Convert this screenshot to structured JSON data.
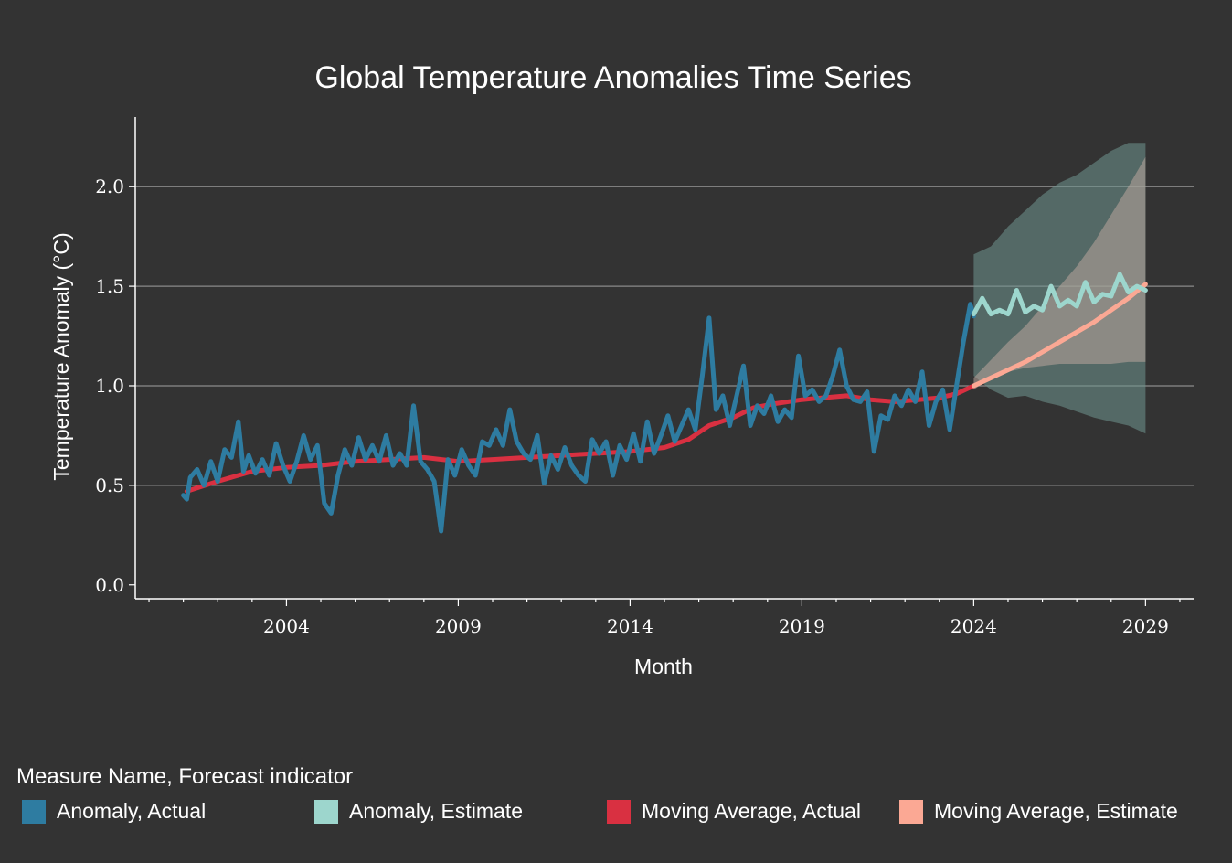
{
  "chart_data": {
    "type": "line",
    "title": "Global Temperature Anomalies Time Series",
    "xlabel": "Month",
    "ylabel": "Temperature Anomaly (°C)",
    "xlim": [
      1999.6,
      2030.4
    ],
    "ylim": [
      -0.07,
      2.35
    ],
    "x_ticks": [
      2004,
      2009,
      2014,
      2019,
      2024,
      2029
    ],
    "y_ticks": [
      0.0,
      0.5,
      1.0,
      1.5,
      2.0
    ],
    "y_tick_labels": [
      "0.0",
      "0.5",
      "1.0",
      "1.5",
      "2.0"
    ],
    "grid": true,
    "legend_title": "Measure Name, Forecast indicator",
    "series": [
      {
        "name": "Anomaly, Actual",
        "color": "#2e7ca1",
        "x": [
          2001.0,
          2001.1,
          2001.2,
          2001.4,
          2001.6,
          2001.8,
          2002.0,
          2002.2,
          2002.4,
          2002.6,
          2002.75,
          2002.9,
          2003.1,
          2003.3,
          2003.5,
          2003.7,
          2003.9,
          2004.1,
          2004.3,
          2004.5,
          2004.7,
          2004.9,
          2005.1,
          2005.3,
          2005.5,
          2005.7,
          2005.9,
          2006.1,
          2006.3,
          2006.5,
          2006.7,
          2006.9,
          2007.1,
          2007.3,
          2007.5,
          2007.7,
          2007.9,
          2008.1,
          2008.3,
          2008.5,
          2008.7,
          2008.9,
          2009.1,
          2009.3,
          2009.5,
          2009.7,
          2009.9,
          2010.1,
          2010.3,
          2010.5,
          2010.7,
          2010.9,
          2011.1,
          2011.3,
          2011.5,
          2011.7,
          2011.9,
          2012.1,
          2012.3,
          2012.5,
          2012.7,
          2012.9,
          2013.1,
          2013.3,
          2013.5,
          2013.7,
          2013.9,
          2014.1,
          2014.3,
          2014.5,
          2014.7,
          2014.9,
          2015.1,
          2015.3,
          2015.5,
          2015.7,
          2015.9,
          2016.1,
          2016.3,
          2016.5,
          2016.7,
          2016.9,
          2017.1,
          2017.3,
          2017.5,
          2017.7,
          2017.9,
          2018.1,
          2018.3,
          2018.5,
          2018.7,
          2018.9,
          2019.1,
          2019.3,
          2019.5,
          2019.7,
          2019.9,
          2020.1,
          2020.3,
          2020.5,
          2020.7,
          2020.9,
          2021.1,
          2021.3,
          2021.5,
          2021.7,
          2021.9,
          2022.1,
          2022.3,
          2022.5,
          2022.7,
          2022.9,
          2023.1,
          2023.3,
          2023.5,
          2023.7,
          2023.9,
          2024.0
        ],
        "values": [
          0.45,
          0.43,
          0.54,
          0.58,
          0.5,
          0.62,
          0.52,
          0.68,
          0.64,
          0.82,
          0.57,
          0.65,
          0.56,
          0.63,
          0.55,
          0.71,
          0.6,
          0.52,
          0.62,
          0.75,
          0.63,
          0.7,
          0.41,
          0.36,
          0.55,
          0.68,
          0.6,
          0.74,
          0.63,
          0.7,
          0.62,
          0.75,
          0.6,
          0.66,
          0.6,
          0.9,
          0.62,
          0.58,
          0.52,
          0.27,
          0.63,
          0.55,
          0.68,
          0.6,
          0.55,
          0.72,
          0.7,
          0.78,
          0.7,
          0.88,
          0.72,
          0.66,
          0.63,
          0.75,
          0.51,
          0.65,
          0.58,
          0.69,
          0.6,
          0.55,
          0.52,
          0.73,
          0.66,
          0.72,
          0.55,
          0.7,
          0.63,
          0.76,
          0.62,
          0.82,
          0.66,
          0.75,
          0.85,
          0.72,
          0.8,
          0.88,
          0.78,
          1.05,
          1.34,
          0.88,
          0.95,
          0.8,
          0.95,
          1.1,
          0.8,
          0.9,
          0.86,
          0.95,
          0.82,
          0.88,
          0.84,
          1.15,
          0.95,
          0.98,
          0.92,
          0.95,
          1.05,
          1.18,
          1.0,
          0.93,
          0.92,
          0.97,
          0.67,
          0.85,
          0.83,
          0.95,
          0.9,
          0.98,
          0.92,
          1.07,
          0.8,
          0.92,
          0.98,
          0.78,
          1.0,
          1.22,
          1.41,
          1.35
        ]
      },
      {
        "name": "Anomaly, Estimate",
        "color": "#9dd6cd",
        "x": [
          2024.0,
          2024.25,
          2024.5,
          2024.75,
          2025.0,
          2025.25,
          2025.5,
          2025.75,
          2026.0,
          2026.25,
          2026.5,
          2026.75,
          2027.0,
          2027.25,
          2027.5,
          2027.75,
          2028.0,
          2028.25,
          2028.5,
          2028.75,
          2029.0
        ],
        "values": [
          1.36,
          1.44,
          1.36,
          1.38,
          1.36,
          1.48,
          1.37,
          1.4,
          1.38,
          1.5,
          1.4,
          1.43,
          1.4,
          1.52,
          1.42,
          1.46,
          1.45,
          1.56,
          1.47,
          1.5,
          1.48
        ]
      },
      {
        "name": "Moving Average, Actual",
        "color": "#d93041",
        "x": [
          2001.1,
          2002.0,
          2003.0,
          2004.0,
          2005.0,
          2006.0,
          2007.0,
          2008.0,
          2009.0,
          2010.0,
          2011.0,
          2012.0,
          2013.0,
          2014.0,
          2015.0,
          2015.7,
          2016.3,
          2017.0,
          2017.6,
          2018.2,
          2019.0,
          2019.6,
          2020.3,
          2021.0,
          2021.7,
          2022.4,
          2023.0,
          2023.5,
          2024.0
        ],
        "values": [
          0.47,
          0.52,
          0.57,
          0.59,
          0.6,
          0.62,
          0.63,
          0.64,
          0.62,
          0.63,
          0.64,
          0.65,
          0.66,
          0.67,
          0.69,
          0.73,
          0.8,
          0.84,
          0.89,
          0.91,
          0.93,
          0.94,
          0.95,
          0.93,
          0.92,
          0.93,
          0.94,
          0.96,
          1.0
        ]
      },
      {
        "name": "Moving Average, Estimate",
        "color": "#fba894",
        "x": [
          2024.0,
          2024.5,
          2025.0,
          2025.5,
          2026.0,
          2026.5,
          2027.0,
          2027.5,
          2028.0,
          2028.5,
          2029.0
        ],
        "values": [
          1.0,
          1.04,
          1.08,
          1.12,
          1.17,
          1.22,
          1.27,
          1.32,
          1.38,
          1.44,
          1.51
        ]
      }
    ],
    "bands": [
      {
        "name": "Anomaly, Estimate interval",
        "color": "#6f9590",
        "x": [
          2024.0,
          2024.5,
          2025.0,
          2025.5,
          2026.0,
          2026.5,
          2027.0,
          2027.5,
          2028.0,
          2028.5,
          2029.0
        ],
        "upper": [
          1.66,
          1.7,
          1.8,
          1.88,
          1.96,
          2.02,
          2.06,
          2.12,
          2.18,
          2.22,
          2.22
        ],
        "lower": [
          1.05,
          0.98,
          0.94,
          0.95,
          0.92,
          0.9,
          0.87,
          0.84,
          0.82,
          0.8,
          0.76
        ]
      },
      {
        "name": "Moving Average, Estimate interval",
        "color": "#b9a59d",
        "x": [
          2024.0,
          2024.5,
          2025.0,
          2025.5,
          2026.0,
          2026.5,
          2027.0,
          2027.5,
          2028.0,
          2028.5,
          2029.0
        ],
        "upper": [
          1.04,
          1.13,
          1.22,
          1.3,
          1.4,
          1.5,
          1.6,
          1.72,
          1.86,
          2.0,
          2.15
        ],
        "lower": [
          0.98,
          1.04,
          1.07,
          1.09,
          1.1,
          1.11,
          1.11,
          1.11,
          1.11,
          1.12,
          1.12
        ]
      }
    ]
  }
}
